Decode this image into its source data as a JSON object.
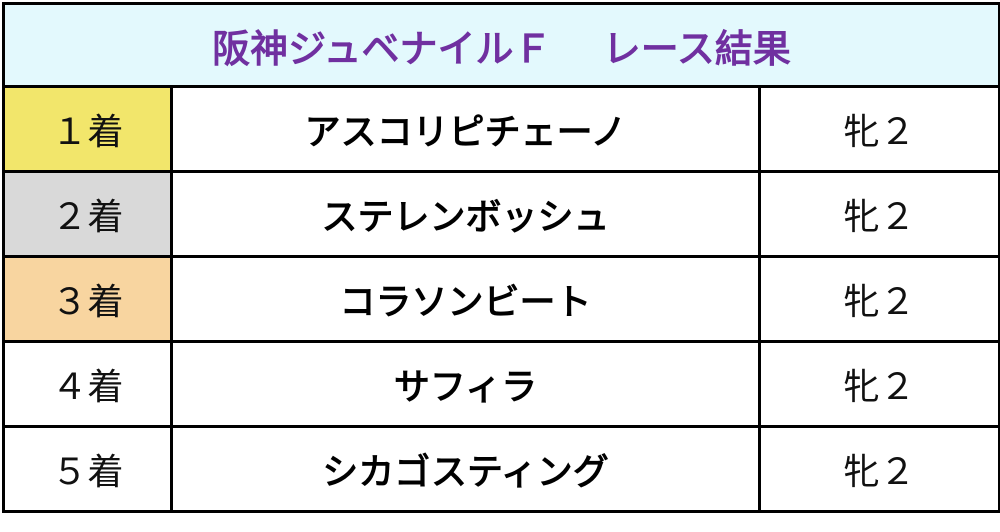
{
  "title": "阪神ジュベナイルＦ　 レース結果",
  "colors": {
    "title_bg": "#e3f9fd",
    "title_text": "#7030a0"
  },
  "results": [
    {
      "rank": "１着",
      "horse": "アスコリピチェーノ",
      "sex_age": "牝２",
      "rank_bg": "#f2e66b"
    },
    {
      "rank": "２着",
      "horse": "ステレンボッシュ",
      "sex_age": "牝２",
      "rank_bg": "#d9d9d9"
    },
    {
      "rank": "３着",
      "horse": "コラソンビート",
      "sex_age": "牝２",
      "rank_bg": "#f8d5a0"
    },
    {
      "rank": "４着",
      "horse": "サフィラ",
      "sex_age": "牝２",
      "rank_bg": "#ffffff"
    },
    {
      "rank": "５着",
      "horse": "シカゴスティング",
      "sex_age": "牝２",
      "rank_bg": "#ffffff"
    }
  ]
}
